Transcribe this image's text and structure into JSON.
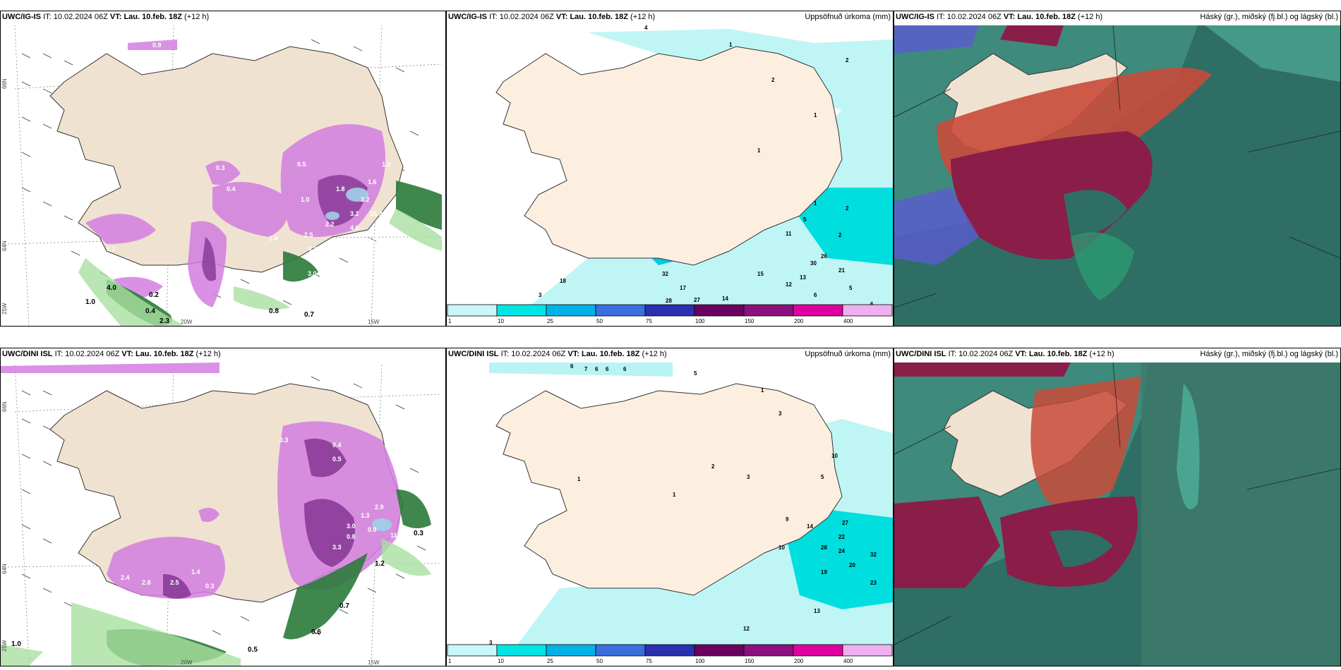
{
  "header_common": {
    "it": "IT:",
    "it_value": "10.02.2024 06Z",
    "vt": "VT:",
    "vt_value": "Lau. 10.feb. 18Z",
    "lead": "(+12 h)"
  },
  "rows": [
    {
      "model": "UWC/IG-IS"
    },
    {
      "model": "UWC/DINI ISL"
    }
  ],
  "titles": {
    "precip": "Uppsöfnuð úrkoma (mm)",
    "cloud": "Háský (gr.), miðský (fj.bl.) og lágský (bl.)"
  },
  "axis": {
    "lat66": "66N",
    "lat64": "64N",
    "lon25": "25W",
    "lon20": "20W",
    "lon15": "15W"
  },
  "colorbar": {
    "labels": [
      "1",
      "10",
      "25",
      "50",
      "75",
      "100",
      "150",
      "200",
      "400"
    ],
    "colors": [
      "#c8f7f7",
      "#00e5e5",
      "#00b3e6",
      "#3b6fe0",
      "#2a30b0",
      "#6b0060",
      "#8c1080",
      "#e000a0",
      "#f0b0f0"
    ]
  },
  "left_labels_top": [
    "0.9",
    "0.3",
    "0.5",
    "0.4",
    "1.0",
    "1.3",
    "1.6",
    "3.2",
    "15.3",
    "4.0",
    "2.8",
    "3.2",
    "1.8",
    "2.2",
    "1.4",
    "2.5",
    "4.2",
    "3.0",
    "1.7",
    "0.8",
    "0.7",
    "2.3",
    "0.4",
    "4.0",
    "1.0",
    "0.2"
  ],
  "left_labels_bottom": [
    "0.3",
    "0.4",
    "0.5",
    "2.4",
    "2.8",
    "2.5",
    "1.4",
    "0.3",
    "1.3",
    "0.9",
    "0.8",
    "11.5",
    "3.3",
    "3.0",
    "2.9",
    "1.2",
    "0.7",
    "0.5",
    "0.6",
    "1.0",
    "0.3"
  ],
  "precip_labels_top": [
    "4",
    "1",
    "2",
    "2",
    "1",
    "1",
    "1",
    "2",
    "2",
    "5",
    "26",
    "30",
    "21",
    "11",
    "15",
    "13",
    "6",
    "12",
    "17",
    "14",
    "5",
    "18",
    "27",
    "28",
    "6",
    "3",
    "32"
  ],
  "precip_labels_bottom": [
    "6",
    "7",
    "6",
    "6",
    "6",
    "5",
    "1",
    "3",
    "2",
    "1",
    "1",
    "10",
    "5",
    "3",
    "9",
    "14",
    "27",
    "22",
    "24",
    "28",
    "20",
    "32",
    "19",
    "23",
    "10",
    "13",
    "12",
    "3"
  ]
}
